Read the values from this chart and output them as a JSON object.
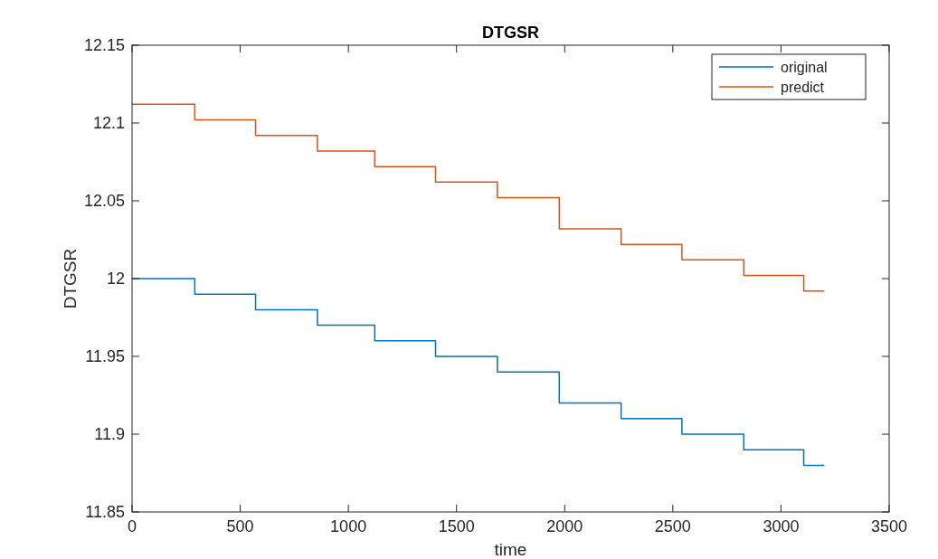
{
  "chart_data": {
    "type": "step",
    "title": "DTGSR",
    "xlabel": "time",
    "ylabel": "DTGSR",
    "x": [
      0,
      290,
      571,
      857,
      1122,
      1403,
      1689,
      1975,
      2261,
      2542,
      2828,
      3105,
      3200
    ],
    "series": [
      {
        "name": "original",
        "color": "#0072bd",
        "values": [
          12.0,
          11.99,
          11.98,
          11.97,
          11.96,
          11.95,
          11.94,
          11.92,
          11.91,
          11.9,
          11.89,
          11.88,
          11.88
        ]
      },
      {
        "name": "predict",
        "color": "#d95319",
        "values": [
          12.112,
          12.102,
          12.092,
          12.082,
          12.072,
          12.062,
          12.052,
          12.032,
          12.022,
          12.012,
          12.002,
          11.992,
          11.992
        ]
      }
    ],
    "xlim": [
      0,
      3500
    ],
    "xticks": [
      0,
      500,
      1000,
      1500,
      2000,
      2500,
      3000,
      3500
    ],
    "ylim": [
      11.85,
      12.15
    ],
    "yticks": [
      11.85,
      11.9,
      11.95,
      12,
      12.05,
      12.1,
      12.15
    ],
    "legend": "top right",
    "grid": false
  }
}
